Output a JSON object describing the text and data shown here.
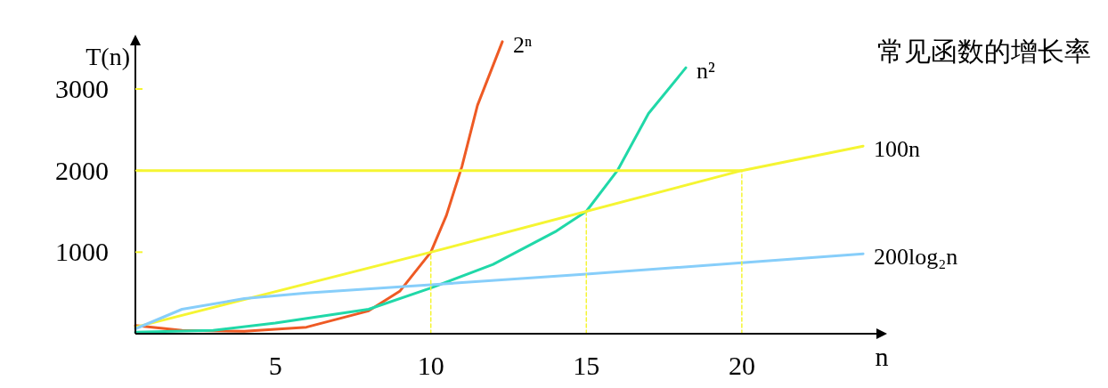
{
  "chart_data": {
    "type": "line",
    "title": "常见函数的增长率",
    "xlabel": "n",
    "ylabel": "T(n)",
    "xlim": [
      0.5,
      24.5
    ],
    "ylim": [
      0,
      3600
    ],
    "xticks": [
      5,
      10,
      15,
      20
    ],
    "yticks": [
      1000,
      2000,
      3000
    ],
    "grid": false,
    "marker": "none",
    "series": [
      {
        "name": "2ⁿ",
        "color": "#ee5a24",
        "x": [
          0.5,
          2,
          4,
          6,
          8,
          9,
          10,
          10.5,
          11,
          11.5,
          12.3
        ],
        "values": [
          100,
          40,
          30,
          80,
          280,
          520,
          1000,
          1450,
          2050,
          2800,
          3580
        ]
      },
      {
        "name": "n²",
        "color": "#20d8a8",
        "x": [
          0.5,
          3,
          5,
          8,
          10,
          12,
          14,
          15,
          16,
          17,
          18.2
        ],
        "values": [
          20,
          40,
          130,
          300,
          560,
          850,
          1250,
          1500,
          2000,
          2700,
          3260
        ]
      },
      {
        "name": "100n",
        "color": "#f5f532",
        "x": [
          0.5,
          10,
          20,
          23.9
        ],
        "values": [
          80,
          1000,
          2000,
          2300
        ]
      },
      {
        "name": "200log₂n",
        "color": "#87cefa",
        "x": [
          0.5,
          2,
          4,
          6,
          10,
          15,
          20,
          23.9
        ],
        "values": [
          60,
          300,
          430,
          500,
          600,
          730,
          870,
          980
        ]
      },
      {
        "color": "#f5f532",
        "x": [
          0.5,
          20
        ],
        "values": [
          2000,
          2000
        ]
      },
      {
        "color": "#f5f532",
        "line_style": "dashed",
        "x": [
          10,
          10
        ],
        "values": [
          0,
          1000
        ]
      },
      {
        "color": "#f5f532",
        "line_style": "dashed",
        "x": [
          15,
          15
        ],
        "values": [
          0,
          1500
        ]
      },
      {
        "color": "#f5f532",
        "line_style": "dashed",
        "x": [
          20,
          20
        ],
        "values": [
          0,
          2000
        ]
      }
    ]
  }
}
